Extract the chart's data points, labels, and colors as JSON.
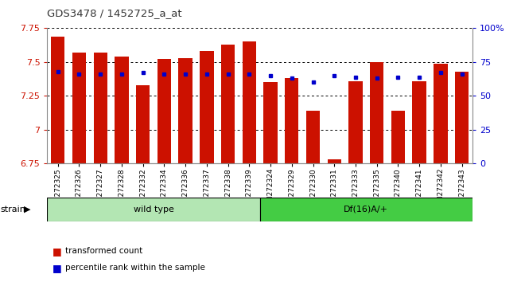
{
  "title": "GDS3478 / 1452725_a_at",
  "categories": [
    "GSM272325",
    "GSM272326",
    "GSM272327",
    "GSM272328",
    "GSM272332",
    "GSM272334",
    "GSM272336",
    "GSM272337",
    "GSM272338",
    "GSM272339",
    "GSM272324",
    "GSM272329",
    "GSM272330",
    "GSM272331",
    "GSM272333",
    "GSM272335",
    "GSM272340",
    "GSM272341",
    "GSM272342",
    "GSM272343"
  ],
  "bar_values": [
    7.69,
    7.57,
    7.57,
    7.54,
    7.33,
    7.52,
    7.53,
    7.58,
    7.63,
    7.65,
    7.35,
    7.38,
    7.14,
    6.78,
    7.36,
    7.5,
    7.14,
    7.36,
    7.49,
    7.43
  ],
  "percentile_values_pct": [
    68,
    66,
    66,
    66,
    67,
    66,
    66,
    66,
    66,
    66,
    65,
    63,
    60,
    65,
    64,
    63,
    64,
    64,
    67,
    66
  ],
  "group1_count": 10,
  "group1_label": "wild type",
  "group2_label": "Df(16)A/+",
  "ymin": 6.75,
  "ymax": 7.75,
  "yticks": [
    6.75,
    7.0,
    7.25,
    7.5,
    7.75
  ],
  "ytick_labels": [
    "6.75",
    "7",
    "7.25",
    "7.5",
    "7.75"
  ],
  "right_yticks_pct": [
    0,
    25,
    50,
    75,
    100
  ],
  "right_ytick_labels": [
    "0",
    "25",
    "50",
    "75",
    "100%"
  ],
  "bar_color": "#cc1100",
  "percentile_color": "#0000cc",
  "group1_color": "#b3e6b3",
  "group2_color": "#44cc44",
  "axis_color": "#cc1100",
  "right_axis_color": "#0000cc",
  "legend_label_red": "transformed count",
  "legend_label_blue": "percentile rank within the sample",
  "strain_label": "strain"
}
